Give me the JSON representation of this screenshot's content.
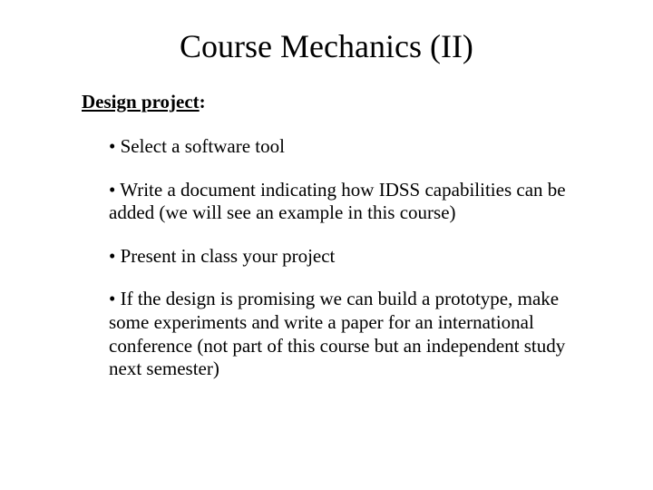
{
  "title": "Course Mechanics (II)",
  "subhead_text": "Design project",
  "subhead_colon": ":",
  "bullets": [
    "Select a software tool",
    "Write a document indicating how IDSS capabilities can be added (we will see an example in this course)",
    "Present in class your project",
    "If the design is promising we can build a prototype, make some experiments and write a paper for an international conference (not part of this course but an independent study next semester)"
  ],
  "style": {
    "background_color": "#ffffff",
    "text_color": "#000000",
    "title_fontsize": 36,
    "subhead_fontsize": 21,
    "body_fontsize": 21,
    "font_family": "Times New Roman"
  }
}
